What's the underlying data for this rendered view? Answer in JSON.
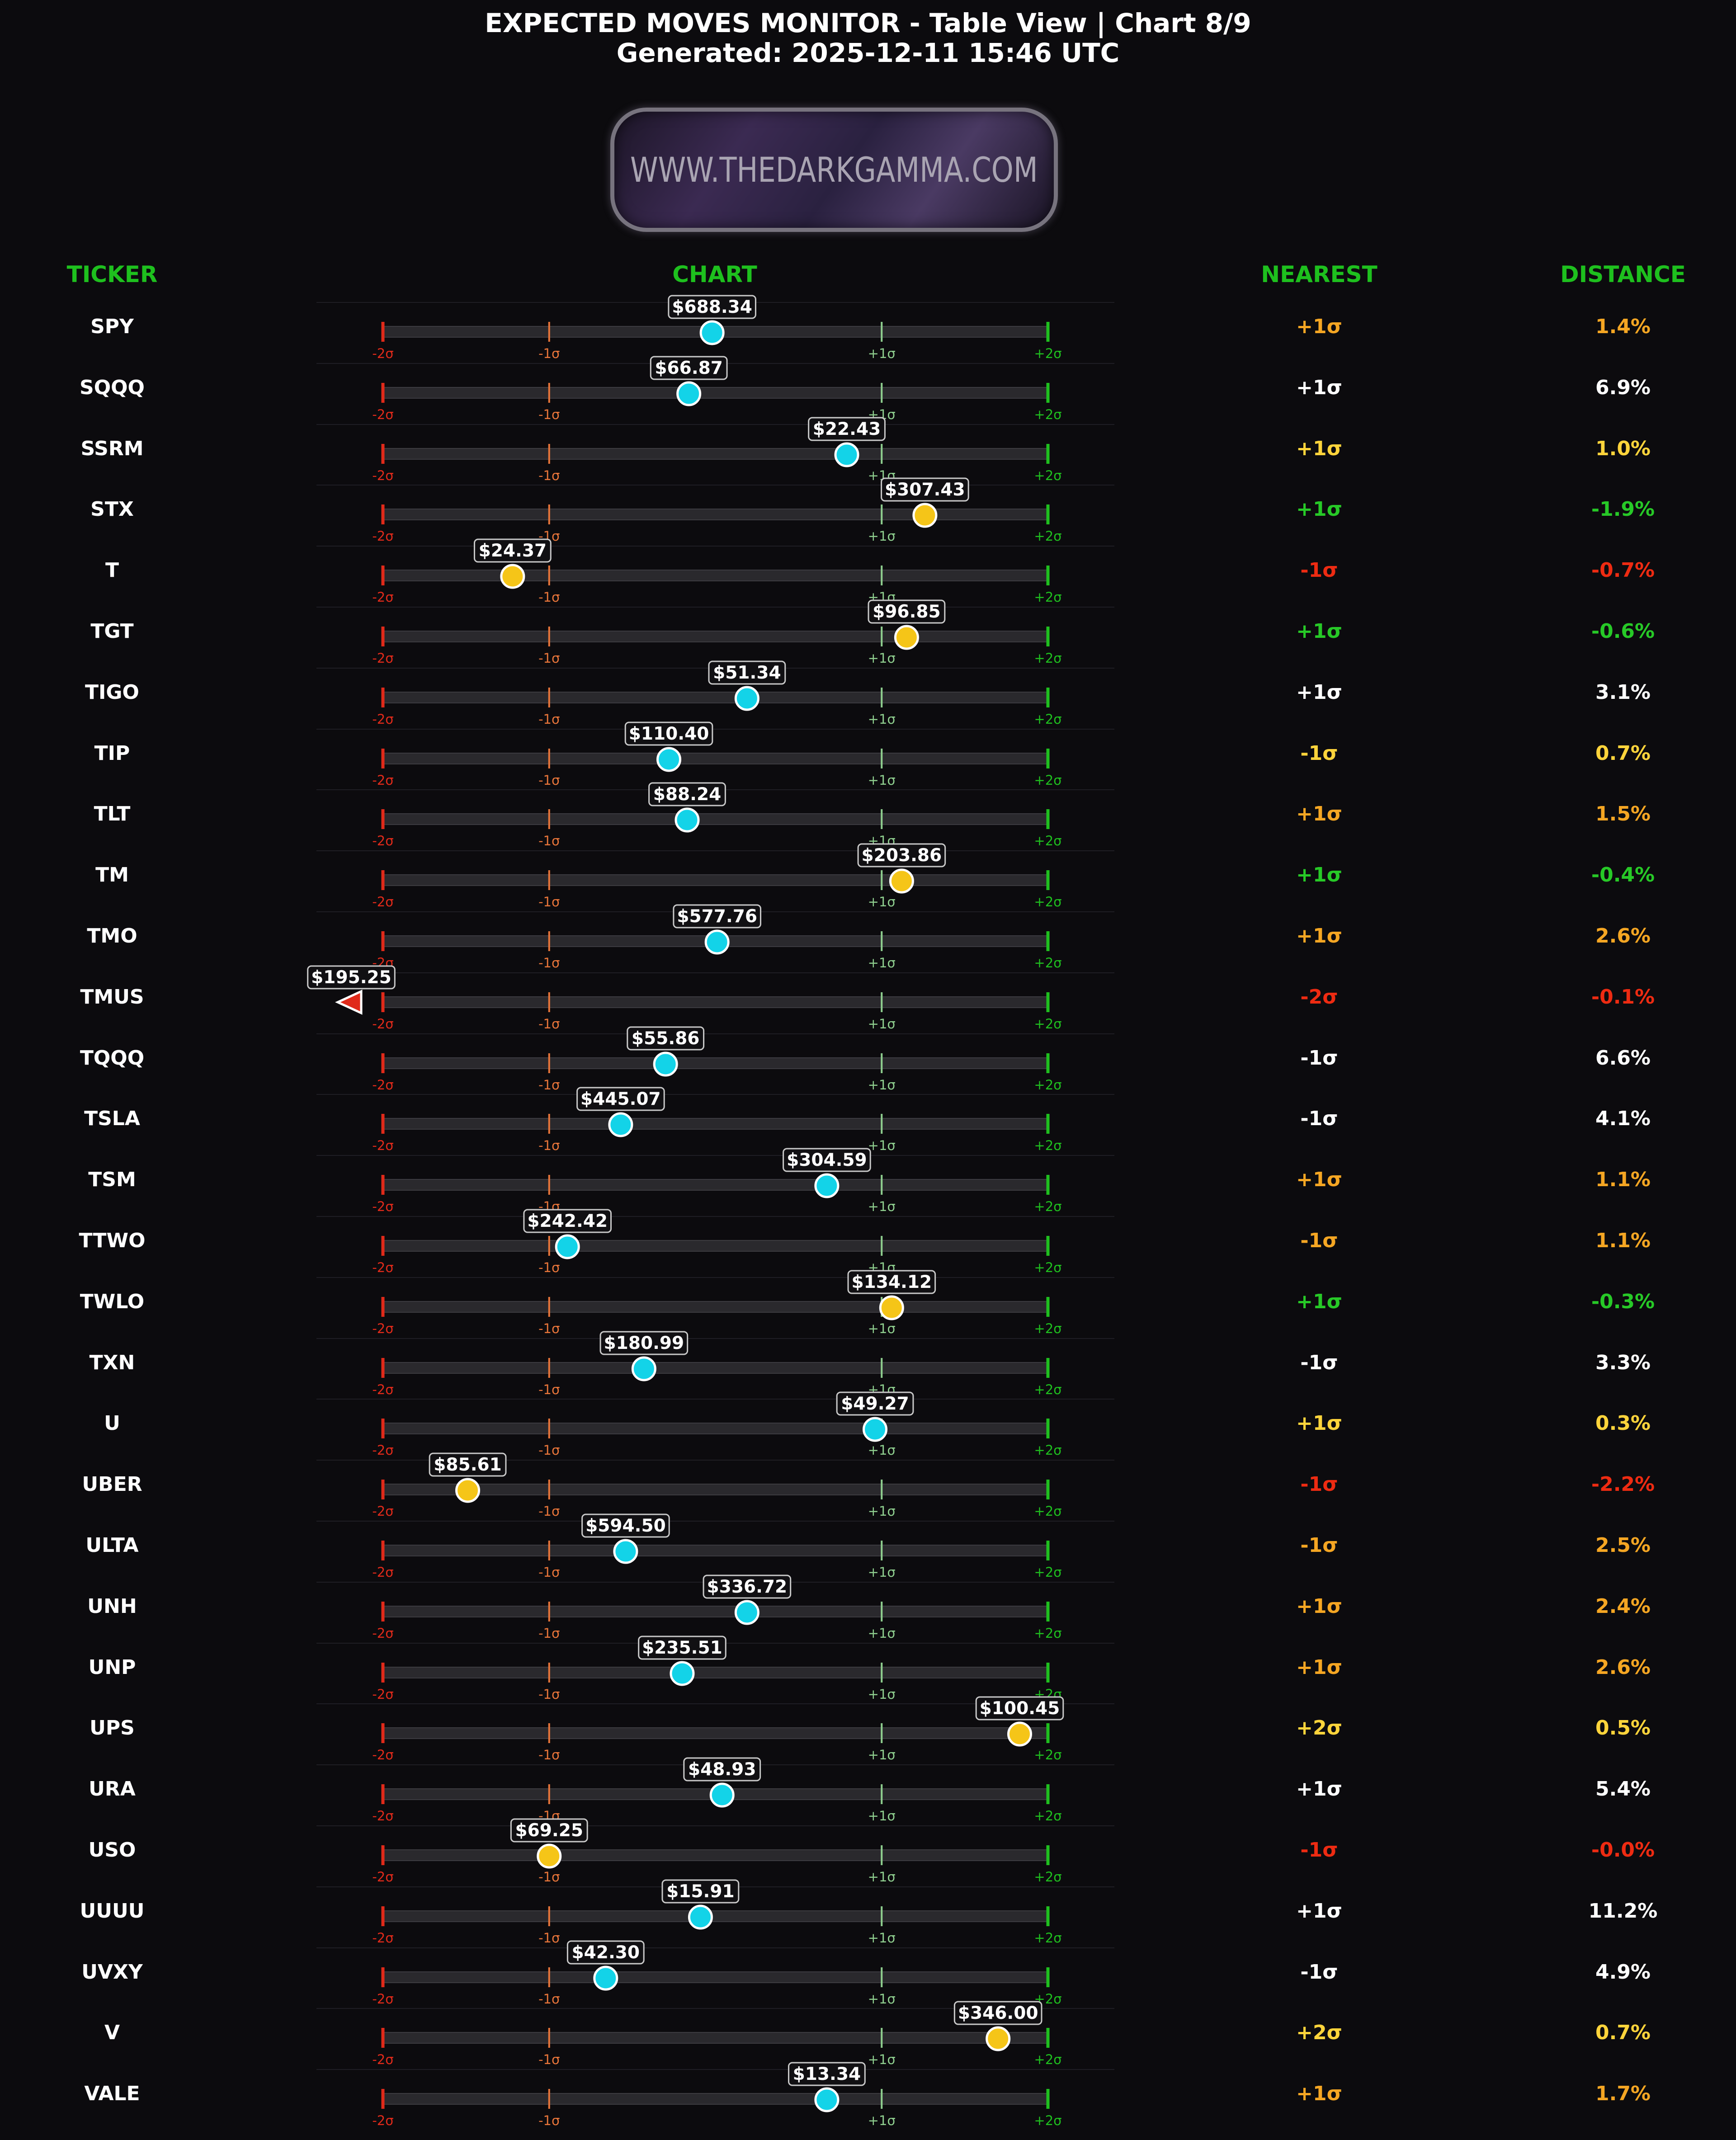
{
  "header": {
    "title": "EXPECTED MOVES MONITOR - Table View | Chart 8/9",
    "generated": "Generated: 2025-12-11 15:46 UTC",
    "logo_text": "WWW.THEDARKGAMMA.COM"
  },
  "columns": {
    "ticker": "TICKER",
    "chart": "CHART",
    "nearest": "NEAREST",
    "distance": "DISTANCE"
  },
  "colors": {
    "background": "#0c0b0e",
    "header_green": "#1ec01e",
    "neg2": "#e02a1a",
    "neg1": "#e8753a",
    "pos1": "#8fcf8f",
    "pos2": "#1fbf1f",
    "marker_cyan": "#13d3e8",
    "marker_yellow": "#f5c518",
    "text_orange": "#f5a623",
    "text_yellow": "#ffd43b",
    "text_green": "#27c927",
    "text_red": "#ee2b12",
    "text_white": "#ffffff"
  },
  "chart_data": {
    "type": "table",
    "x_scale": "sigma",
    "xlim": [
      -2,
      2
    ],
    "level_labels": [
      "-2σ",
      "-1σ",
      "+1σ",
      "+2σ"
    ],
    "rows": [
      {
        "ticker": "SPY",
        "price": "$688.34",
        "sigma": -0.02,
        "marker": "cyan",
        "nearest": "+1σ",
        "distance": "1.4%",
        "nearest_color": "orange",
        "distance_color": "orange"
      },
      {
        "ticker": "SQQQ",
        "price": "$66.87",
        "sigma": -0.16,
        "marker": "cyan",
        "nearest": "+1σ",
        "distance": "6.9%",
        "nearest_color": "white",
        "distance_color": "white"
      },
      {
        "ticker": "SSRM",
        "price": "$22.43",
        "sigma": 0.79,
        "marker": "cyan",
        "nearest": "+1σ",
        "distance": "1.0%",
        "nearest_color": "yellow",
        "distance_color": "yellow"
      },
      {
        "ticker": "STX",
        "price": "$307.43",
        "sigma": 1.26,
        "marker": "yellow",
        "nearest": "+1σ",
        "distance": "-1.9%",
        "nearest_color": "green",
        "distance_color": "green"
      },
      {
        "ticker": "T",
        "price": "$24.37",
        "sigma": -1.22,
        "marker": "yellow",
        "nearest": "-1σ",
        "distance": "-0.7%",
        "nearest_color": "red",
        "distance_color": "red"
      },
      {
        "ticker": "TGT",
        "price": "$96.85",
        "sigma": 1.15,
        "marker": "yellow",
        "nearest": "+1σ",
        "distance": "-0.6%",
        "nearest_color": "green",
        "distance_color": "green"
      },
      {
        "ticker": "TIGO",
        "price": "$51.34",
        "sigma": 0.19,
        "marker": "cyan",
        "nearest": "+1σ",
        "distance": "3.1%",
        "nearest_color": "white",
        "distance_color": "white"
      },
      {
        "ticker": "TIP",
        "price": "$110.40",
        "sigma": -0.28,
        "marker": "cyan",
        "nearest": "-1σ",
        "distance": "0.7%",
        "nearest_color": "yellow",
        "distance_color": "yellow"
      },
      {
        "ticker": "TLT",
        "price": "$88.24",
        "sigma": -0.17,
        "marker": "cyan",
        "nearest": "+1σ",
        "distance": "1.5%",
        "nearest_color": "orange",
        "distance_color": "orange"
      },
      {
        "ticker": "TM",
        "price": "$203.86",
        "sigma": 1.12,
        "marker": "yellow",
        "nearest": "+1σ",
        "distance": "-0.4%",
        "nearest_color": "green",
        "distance_color": "green"
      },
      {
        "ticker": "TMO",
        "price": "$577.76",
        "sigma": 0.01,
        "marker": "cyan",
        "nearest": "+1σ",
        "distance": "2.6%",
        "nearest_color": "orange",
        "distance_color": "orange"
      },
      {
        "ticker": "TMUS",
        "price": "$195.25",
        "sigma": -2.2,
        "marker": "arrow",
        "nearest": "-2σ",
        "distance": "-0.1%",
        "nearest_color": "red",
        "distance_color": "red"
      },
      {
        "ticker": "TQQQ",
        "price": "$55.86",
        "sigma": -0.3,
        "marker": "cyan",
        "nearest": "-1σ",
        "distance": "6.6%",
        "nearest_color": "white",
        "distance_color": "white"
      },
      {
        "ticker": "TSLA",
        "price": "$445.07",
        "sigma": -0.57,
        "marker": "cyan",
        "nearest": "-1σ",
        "distance": "4.1%",
        "nearest_color": "white",
        "distance_color": "white"
      },
      {
        "ticker": "TSM",
        "price": "$304.59",
        "sigma": 0.67,
        "marker": "cyan",
        "nearest": "+1σ",
        "distance": "1.1%",
        "nearest_color": "orange",
        "distance_color": "orange"
      },
      {
        "ticker": "TTWO",
        "price": "$242.42",
        "sigma": -0.89,
        "marker": "cyan",
        "nearest": "-1σ",
        "distance": "1.1%",
        "nearest_color": "orange",
        "distance_color": "orange"
      },
      {
        "ticker": "TWLO",
        "price": "$134.12",
        "sigma": 1.06,
        "marker": "yellow",
        "nearest": "+1σ",
        "distance": "-0.3%",
        "nearest_color": "green",
        "distance_color": "green"
      },
      {
        "ticker": "TXN",
        "price": "$180.99",
        "sigma": -0.43,
        "marker": "cyan",
        "nearest": "-1σ",
        "distance": "3.3%",
        "nearest_color": "white",
        "distance_color": "white"
      },
      {
        "ticker": "U",
        "price": "$49.27",
        "sigma": 0.96,
        "marker": "cyan",
        "nearest": "+1σ",
        "distance": "0.3%",
        "nearest_color": "yellow",
        "distance_color": "yellow"
      },
      {
        "ticker": "UBER",
        "price": "$85.61",
        "sigma": -1.49,
        "marker": "yellow",
        "nearest": "-1σ",
        "distance": "-2.2%",
        "nearest_color": "red",
        "distance_color": "red"
      },
      {
        "ticker": "ULTA",
        "price": "$594.50",
        "sigma": -0.54,
        "marker": "cyan",
        "nearest": "-1σ",
        "distance": "2.5%",
        "nearest_color": "orange",
        "distance_color": "orange"
      },
      {
        "ticker": "UNH",
        "price": "$336.72",
        "sigma": 0.19,
        "marker": "cyan",
        "nearest": "+1σ",
        "distance": "2.4%",
        "nearest_color": "orange",
        "distance_color": "orange"
      },
      {
        "ticker": "UNP",
        "price": "$235.51",
        "sigma": -0.2,
        "marker": "cyan",
        "nearest": "+1σ",
        "distance": "2.6%",
        "nearest_color": "orange",
        "distance_color": "orange"
      },
      {
        "ticker": "UPS",
        "price": "$100.45",
        "sigma": 1.83,
        "marker": "yellow",
        "nearest": "+2σ",
        "distance": "0.5%",
        "nearest_color": "yellow",
        "distance_color": "yellow"
      },
      {
        "ticker": "URA",
        "price": "$48.93",
        "sigma": 0.04,
        "marker": "cyan",
        "nearest": "+1σ",
        "distance": "5.4%",
        "nearest_color": "white",
        "distance_color": "white"
      },
      {
        "ticker": "USO",
        "price": "$69.25",
        "sigma": -1.0,
        "marker": "yellow",
        "nearest": "-1σ",
        "distance": "-0.0%",
        "nearest_color": "red",
        "distance_color": "red"
      },
      {
        "ticker": "UUUU",
        "price": "$15.91",
        "sigma": -0.09,
        "marker": "cyan",
        "nearest": "+1σ",
        "distance": "11.2%",
        "nearest_color": "white",
        "distance_color": "white"
      },
      {
        "ticker": "UVXY",
        "price": "$42.30",
        "sigma": -0.66,
        "marker": "cyan",
        "nearest": "-1σ",
        "distance": "4.9%",
        "nearest_color": "white",
        "distance_color": "white"
      },
      {
        "ticker": "V",
        "price": "$346.00",
        "sigma": 1.7,
        "marker": "yellow",
        "nearest": "+2σ",
        "distance": "0.7%",
        "nearest_color": "yellow",
        "distance_color": "yellow"
      },
      {
        "ticker": "VALE",
        "price": "$13.34",
        "sigma": 0.67,
        "marker": "cyan",
        "nearest": "+1σ",
        "distance": "1.7%",
        "nearest_color": "orange",
        "distance_color": "orange"
      }
    ]
  }
}
